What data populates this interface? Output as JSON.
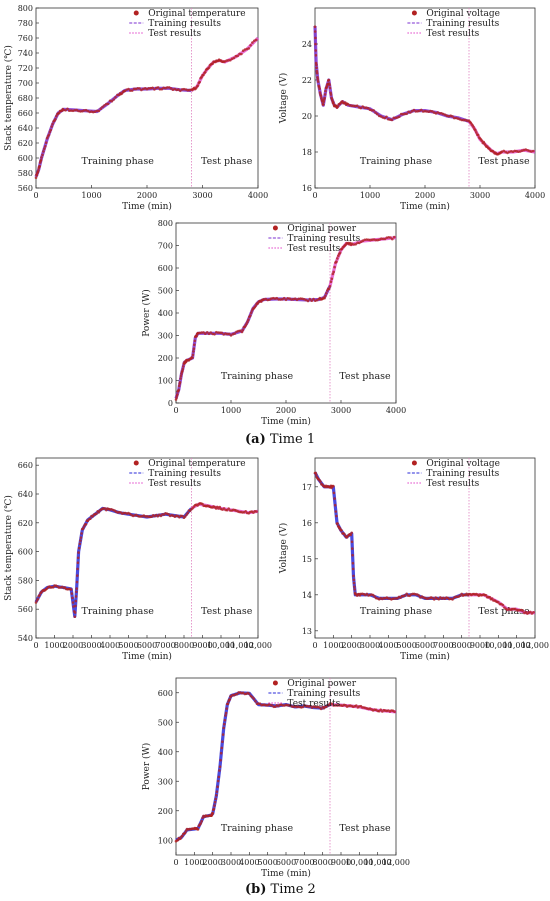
{
  "captions": {
    "a_letter": "(a)",
    "a_text": " Time 1",
    "b_letter": "(b)",
    "b_text": " Time 2"
  },
  "colors": {
    "original": "#b22222",
    "training_time1": "#7b2fd1",
    "training_time2": "#2a2ad8",
    "test": "#e040c8",
    "phase_line": "#e080c0"
  },
  "chart_data": [
    {
      "id": "a1",
      "type": "line",
      "xlabel": "Time (min)",
      "ylabel": "Stack temperature (℃)",
      "xlim": [
        0,
        4000
      ],
      "ylim": [
        560,
        800
      ],
      "xticks": [
        0,
        1000,
        2000,
        3000,
        4000
      ],
      "xtick_labels": [
        "0",
        "1000",
        "2000",
        "3000",
        "4000"
      ],
      "yticks": [
        560,
        580,
        600,
        620,
        640,
        660,
        680,
        700,
        720,
        740,
        760,
        780,
        800
      ],
      "phase_split": 2800,
      "phase_labels": [
        "Training phase",
        "Test phase"
      ],
      "legend": [
        "Original temperature",
        "Training results",
        "Test results"
      ],
      "series": [
        {
          "name": "Original temperature",
          "x": [
            0,
            50,
            100,
            200,
            300,
            400,
            500,
            700,
            900,
            1100,
            1300,
            1500,
            1600,
            1800,
            2000,
            2200,
            2400,
            2600,
            2800,
            2900,
            3000,
            3100,
            3200,
            3300,
            3400,
            3600,
            3800,
            4000
          ],
          "y": [
            575,
            585,
            600,
            625,
            645,
            660,
            665,
            664,
            663,
            662,
            673,
            685,
            690,
            692,
            692,
            693,
            693,
            691,
            690,
            695,
            710,
            720,
            728,
            730,
            728,
            735,
            745,
            760
          ]
        }
      ]
    },
    {
      "id": "a2",
      "type": "line",
      "xlabel": "Time (min)",
      "ylabel": "Voltage (V)",
      "xlim": [
        0,
        4000
      ],
      "ylim": [
        16,
        26
      ],
      "xticks": [
        0,
        1000,
        2000,
        3000,
        4000
      ],
      "xtick_labels": [
        "0",
        "1000",
        "2000",
        "3000",
        "4000"
      ],
      "yticks": [
        16,
        18,
        20,
        22,
        24
      ],
      "phase_split": 2800,
      "phase_labels": [
        "Training phase",
        "Test phase"
      ],
      "legend": [
        "Original voltage",
        "Training results",
        "Test results"
      ],
      "series": [
        {
          "name": "Original voltage",
          "x": [
            0,
            20,
            50,
            100,
            150,
            200,
            250,
            300,
            350,
            400,
            500,
            600,
            800,
            1000,
            1200,
            1400,
            1600,
            1800,
            2000,
            2200,
            2400,
            2600,
            2800,
            2900,
            3000,
            3100,
            3200,
            3300,
            3400,
            3600,
            3800,
            4000
          ],
          "y": [
            25,
            23,
            22,
            21.2,
            20.6,
            21.5,
            22,
            21,
            20.6,
            20.5,
            20.8,
            20.6,
            20.5,
            20.4,
            20.0,
            19.8,
            20.1,
            20.3,
            20.3,
            20.2,
            20.0,
            19.9,
            19.7,
            19.3,
            18.7,
            18.4,
            18.1,
            17.9,
            18.0,
            18.0,
            18.1,
            18.0
          ]
        }
      ]
    },
    {
      "id": "a3",
      "type": "line",
      "xlabel": "Time (min)",
      "ylabel": "Power (W)",
      "xlim": [
        0,
        4000
      ],
      "ylim": [
        0,
        800
      ],
      "xticks": [
        0,
        1000,
        2000,
        3000,
        4000
      ],
      "xtick_labels": [
        "0",
        "1000",
        "2000",
        "3000",
        "4000"
      ],
      "yticks": [
        0,
        100,
        200,
        300,
        400,
        500,
        600,
        700,
        800
      ],
      "phase_split": 2800,
      "phase_labels": [
        "Training phase",
        "Test phase"
      ],
      "legend": [
        "Original power",
        "Training results",
        "Test results"
      ],
      "series": [
        {
          "name": "Original power",
          "x": [
            0,
            50,
            100,
            150,
            200,
            300,
            350,
            400,
            600,
            800,
            1000,
            1200,
            1300,
            1400,
            1500,
            1600,
            1800,
            2000,
            2200,
            2400,
            2600,
            2700,
            2800,
            2900,
            3000,
            3100,
            3200,
            3400,
            3600,
            3800,
            4000
          ],
          "y": [
            20,
            60,
            130,
            180,
            190,
            200,
            290,
            310,
            310,
            310,
            305,
            320,
            360,
            420,
            450,
            460,
            462,
            462,
            460,
            458,
            460,
            470,
            520,
            620,
            680,
            710,
            705,
            720,
            725,
            730,
            735
          ]
        }
      ]
    },
    {
      "id": "b1",
      "type": "line",
      "xlabel": "Time (min)",
      "ylabel": "Stack temperature (℃)",
      "xlim": [
        0,
        12000
      ],
      "ylim": [
        540,
        665
      ],
      "xticks": [
        0,
        1000,
        2000,
        3000,
        4000,
        5000,
        6000,
        7000,
        8000,
        9000,
        10000,
        11000,
        12000
      ],
      "xtick_labels": [
        "0",
        "1000",
        "2000",
        "3000",
        "4000",
        "5000",
        "6000",
        "7000",
        "8000",
        "9000",
        "10,000",
        "11,000",
        "12,000"
      ],
      "yticks": [
        540,
        560,
        580,
        600,
        620,
        640,
        660
      ],
      "phase_split": 8400,
      "phase_labels": [
        "Training phase",
        "Test phase"
      ],
      "legend": [
        "Original temperature",
        "Training results",
        "Test results"
      ],
      "series": [
        {
          "name": "Original temperature",
          "x": [
            0,
            300,
            600,
            1000,
            1500,
            1900,
            2100,
            2200,
            2300,
            2500,
            2800,
            3200,
            3600,
            4000,
            4500,
            5000,
            5500,
            6000,
            6500,
            7000,
            7500,
            8000,
            8400,
            8800,
            9200,
            9600,
            10000,
            10500,
            11000,
            11500,
            12000
          ],
          "y": [
            565,
            572,
            575,
            576,
            575,
            574,
            555,
            575,
            600,
            615,
            622,
            626,
            630,
            629,
            627,
            626,
            625,
            624,
            625,
            626,
            625,
            624,
            630,
            633,
            632,
            631,
            630,
            629,
            628,
            627,
            628
          ]
        }
      ]
    },
    {
      "id": "b2",
      "type": "line",
      "xlabel": "Time (min)",
      "ylabel": "Voltage (V)",
      "xlim": [
        0,
        12000
      ],
      "ylim": [
        12.8,
        17.8
      ],
      "xticks": [
        0,
        1000,
        2000,
        3000,
        4000,
        5000,
        6000,
        7000,
        8000,
        9000,
        10000,
        11000,
        12000
      ],
      "xtick_labels": [
        "0",
        "1000",
        "2000",
        "3000",
        "4000",
        "5000",
        "6000",
        "7000",
        "8000",
        "9000",
        "10,000",
        "11,000",
        "12,000"
      ],
      "yticks": [
        13,
        14,
        15,
        16,
        17
      ],
      "phase_split": 8400,
      "phase_labels": [
        "Training phase",
        "Test phase"
      ],
      "legend": [
        "Original voltage",
        "Training results",
        "Test results"
      ],
      "series": [
        {
          "name": "Original voltage",
          "x": [
            0,
            200,
            500,
            800,
            1000,
            1200,
            1400,
            1700,
            2000,
            2100,
            2200,
            2500,
            3000,
            3500,
            4000,
            4500,
            5000,
            5500,
            6000,
            6500,
            7000,
            7500,
            8000,
            8400,
            8800,
            9200,
            9600,
            10000,
            10500,
            11000,
            11500,
            12000
          ],
          "y": [
            17.4,
            17.2,
            17.0,
            17.0,
            17.0,
            16.0,
            15.8,
            15.6,
            15.7,
            14.5,
            14.0,
            14.0,
            14.0,
            13.9,
            13.9,
            13.9,
            14.0,
            14.0,
            13.9,
            13.9,
            13.9,
            13.9,
            14.0,
            14.0,
            14.0,
            14.0,
            13.9,
            13.8,
            13.6,
            13.6,
            13.5,
            13.5
          ]
        }
      ]
    },
    {
      "id": "b3",
      "type": "line",
      "xlabel": "Time (min)",
      "ylabel": "Power (W)",
      "xlim": [
        0,
        12000
      ],
      "ylim": [
        50,
        650
      ],
      "xticks": [
        0,
        1000,
        2000,
        3000,
        4000,
        5000,
        6000,
        7000,
        8000,
        9000,
        10000,
        11000,
        12000
      ],
      "xtick_labels": [
        "0",
        "1000",
        "2000",
        "3000",
        "4000",
        "5000",
        "6000",
        "7000",
        "8000",
        "9000",
        "10,000",
        "11,000",
        "12,000"
      ],
      "yticks": [
        100,
        200,
        300,
        400,
        500,
        600
      ],
      "phase_split": 8400,
      "phase_labels": [
        "Training phase",
        "Test phase"
      ],
      "legend": [
        "Original power",
        "Training results",
        "Test results"
      ],
      "series": [
        {
          "name": "Original power",
          "x": [
            0,
            300,
            600,
            1000,
            1200,
            1500,
            1900,
            2000,
            2200,
            2400,
            2600,
            2800,
            3000,
            3500,
            4000,
            4500,
            5000,
            5500,
            6000,
            6500,
            7000,
            7500,
            8000,
            8400,
            9000,
            9500,
            10000,
            10500,
            11000,
            11500,
            12000
          ],
          "y": [
            100,
            110,
            135,
            138,
            140,
            180,
            185,
            190,
            250,
            350,
            480,
            560,
            590,
            600,
            598,
            560,
            558,
            555,
            560,
            552,
            555,
            550,
            548,
            560,
            558,
            555,
            552,
            545,
            540,
            538,
            535
          ]
        }
      ]
    }
  ]
}
